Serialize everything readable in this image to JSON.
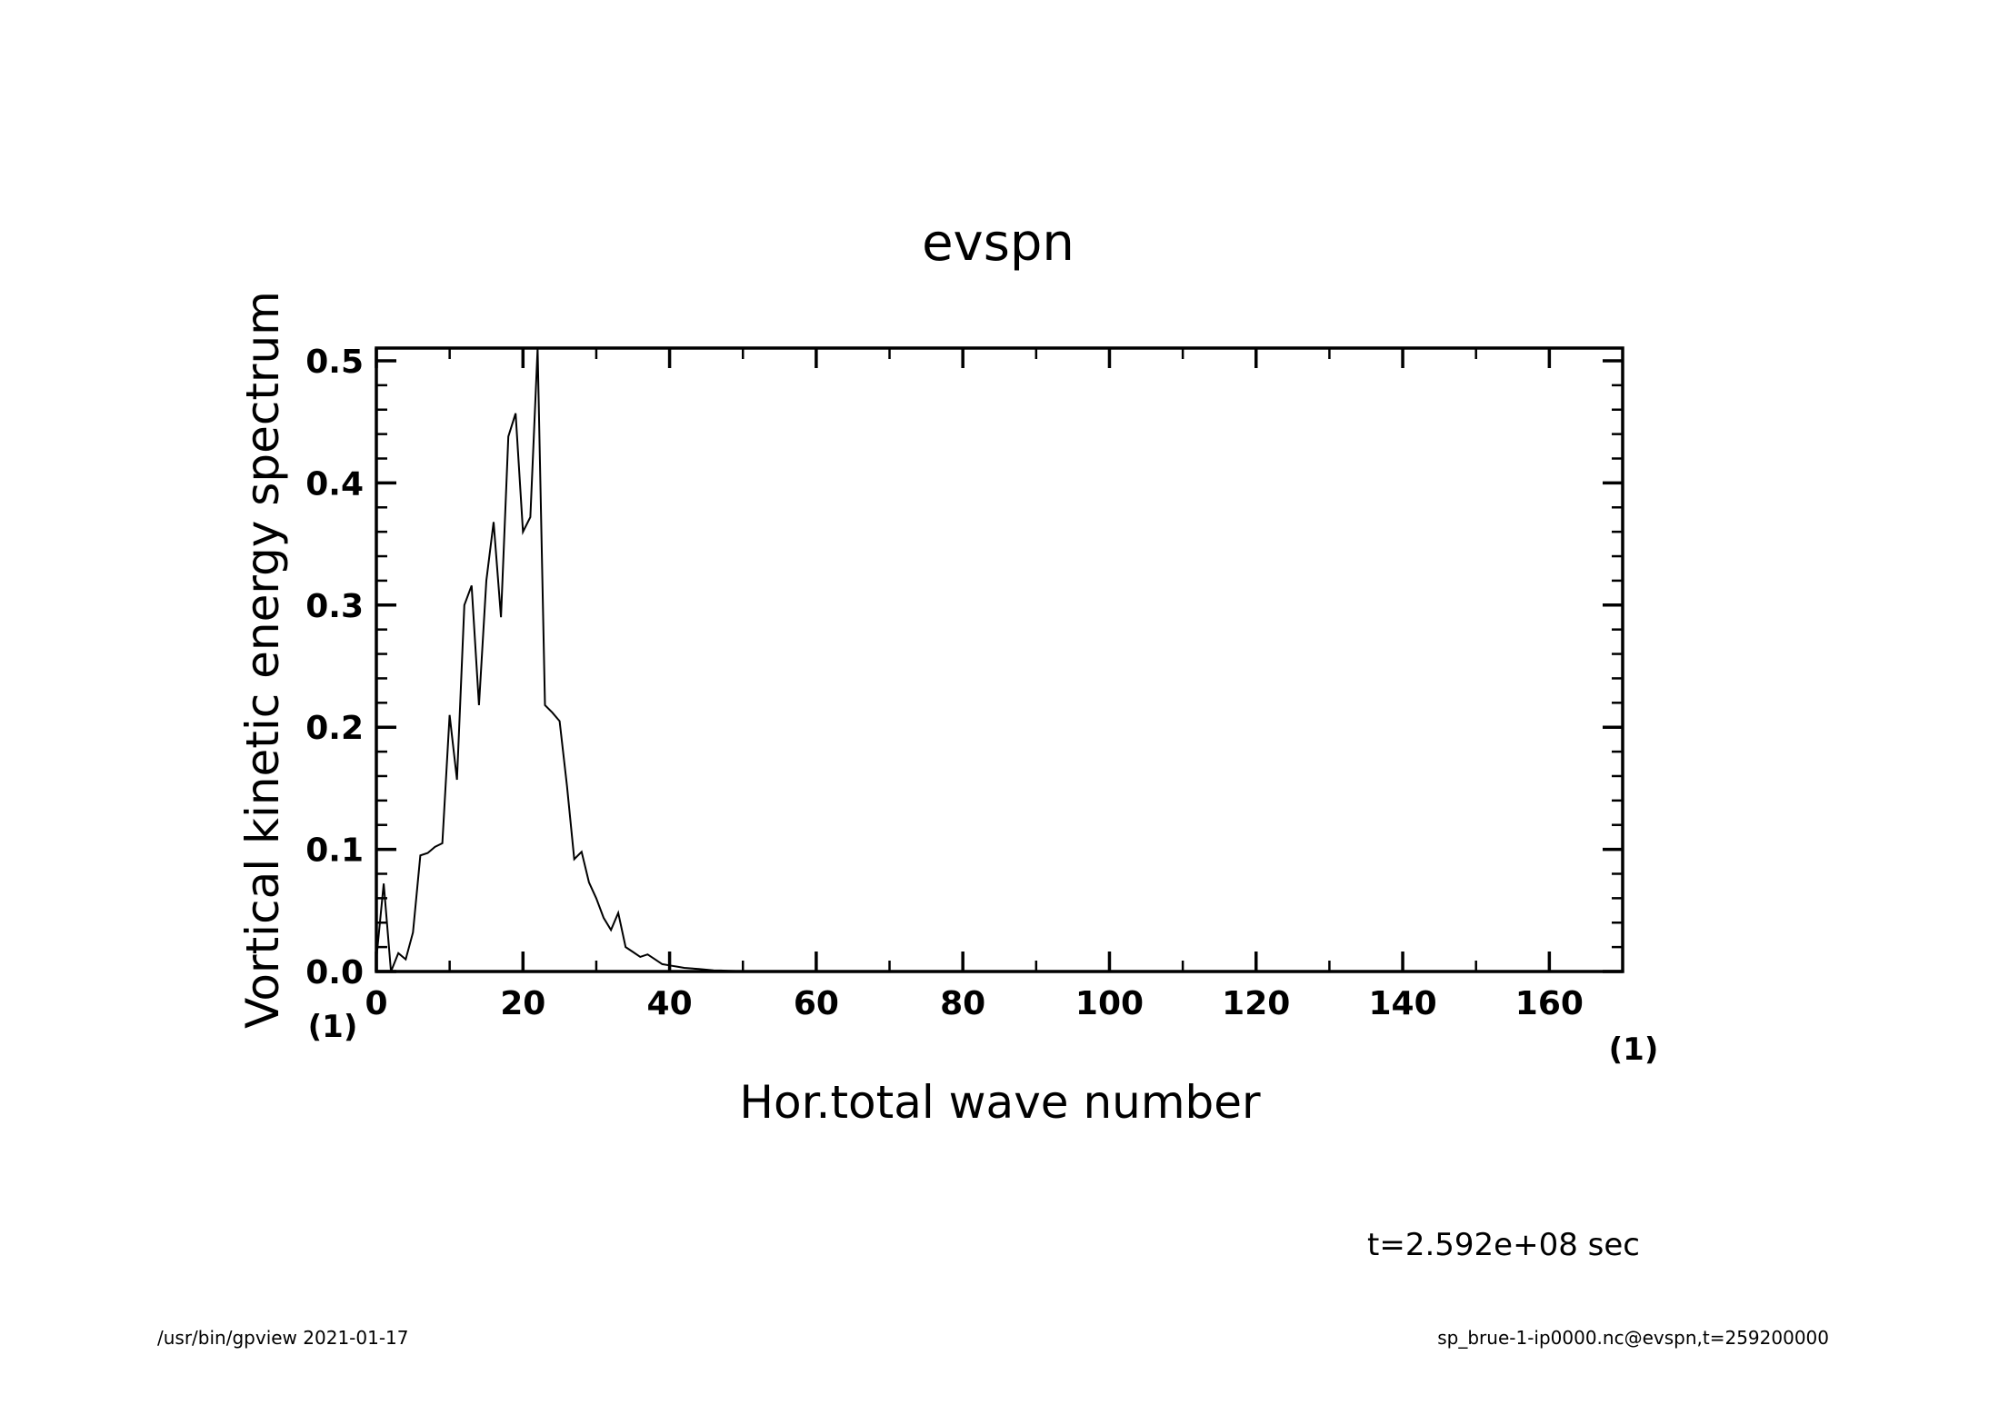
{
  "chart_data": {
    "type": "line",
    "title": "evspn",
    "xlabel": "Hor.total wave number",
    "ylabel": "Vortical kinetic energy spectrum",
    "x_unit_label": "(1)",
    "y_unit_label": "(1)",
    "xlim": [
      0,
      170
    ],
    "ylim": [
      0,
      0.5
    ],
    "x_ticks": [
      0,
      20,
      40,
      60,
      80,
      100,
      120,
      140,
      160
    ],
    "x_tick_labels": [
      "0",
      "20",
      "40",
      "60",
      "80",
      "100",
      "120",
      "140",
      "160"
    ],
    "y_ticks": [
      0.0,
      0.1,
      0.2,
      0.3,
      0.4,
      0.5
    ],
    "y_tick_labels": [
      "0.0",
      "0.1",
      "0.2",
      "0.3",
      "0.4",
      "0.5"
    ],
    "grid": false,
    "series": [
      {
        "x": [
          0,
          1,
          2,
          3,
          4,
          5,
          6,
          7,
          8,
          9,
          10,
          11,
          12,
          13,
          14,
          15,
          16,
          17,
          18,
          19,
          20,
          21,
          22,
          23,
          24,
          25,
          26,
          27,
          28,
          29,
          30,
          31,
          32,
          33,
          34,
          35,
          36,
          37,
          38,
          39,
          40,
          41,
          42,
          43,
          44,
          45,
          46,
          47,
          48,
          49,
          50,
          52,
          55,
          60,
          70,
          80,
          100,
          120,
          140,
          160,
          170
        ],
        "y": [
          0.01,
          0.072,
          0.0,
          0.015,
          0.01,
          0.032,
          0.095,
          0.097,
          0.102,
          0.105,
          0.21,
          0.157,
          0.3,
          0.316,
          0.218,
          0.32,
          0.368,
          0.29,
          0.438,
          0.457,
          0.36,
          0.372,
          0.51,
          0.218,
          0.212,
          0.205,
          0.152,
          0.092,
          0.098,
          0.073,
          0.06,
          0.044,
          0.034,
          0.048,
          0.02,
          0.016,
          0.012,
          0.014,
          0.01,
          0.006,
          0.005,
          0.004,
          0.003,
          0.0025,
          0.002,
          0.0015,
          0.001,
          0.0008,
          0.0006,
          0.0004,
          0.0003,
          0.0002,
          0.0001,
          0.0,
          0.0,
          0.0,
          0.0,
          0.0,
          0.0,
          0.0,
          0.0
        ]
      }
    ]
  },
  "annotations": {
    "time_label": "t=2.592e+08 sec",
    "footer_left": "/usr/bin/gpview   2021-01-17",
    "footer_right": "sp_brue-1-ip0000.nc@evspn,t=259200000"
  }
}
